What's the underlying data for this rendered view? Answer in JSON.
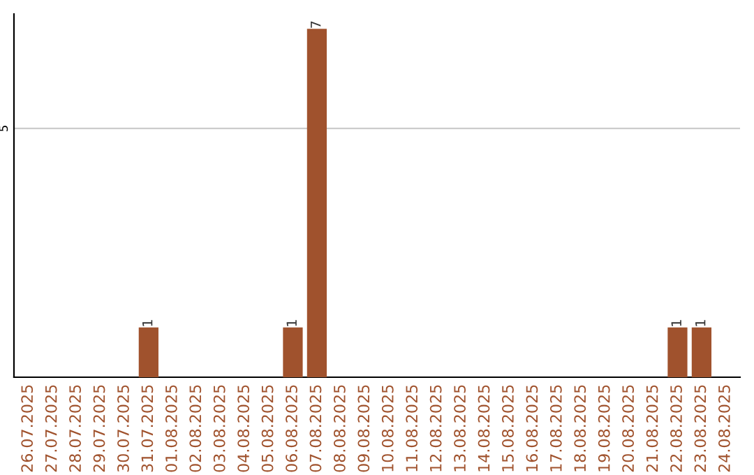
{
  "chart_data": {
    "type": "bar",
    "categories": [
      "26.07.2025",
      "27.07.2025",
      "28.07.2025",
      "29.07.2025",
      "30.07.2025",
      "31.07.2025",
      "01.08.2025",
      "02.08.2025",
      "03.08.2025",
      "04.08.2025",
      "05.08.2025",
      "06.08.2025",
      "07.08.2025",
      "08.08.2025",
      "09.08.2025",
      "10.08.2025",
      "11.08.2025",
      "12.08.2025",
      "13.08.2025",
      "14.08.2025",
      "15.08.2025",
      "16.08.2025",
      "17.08.2025",
      "18.08.2025",
      "19.08.2025",
      "20.08.2025",
      "21.08.2025",
      "22.08.2025",
      "23.08.2025",
      "24.08.2025"
    ],
    "values": [
      0,
      0,
      0,
      0,
      0,
      1,
      0,
      0,
      0,
      0,
      0,
      1,
      7,
      0,
      0,
      0,
      0,
      0,
      0,
      0,
      0,
      0,
      0,
      0,
      0,
      0,
      0,
      1,
      1,
      0
    ],
    "value_labels": [
      null,
      null,
      null,
      null,
      null,
      "1",
      null,
      null,
      null,
      null,
      null,
      "1",
      "7",
      null,
      null,
      null,
      null,
      null,
      null,
      null,
      null,
      null,
      null,
      null,
      null,
      null,
      null,
      "1",
      "1",
      null
    ],
    "color": "#a0522d",
    "ylim": [
      0,
      7.3
    ],
    "yticks": [
      5
    ],
    "grid": "y",
    "legend": false
  }
}
